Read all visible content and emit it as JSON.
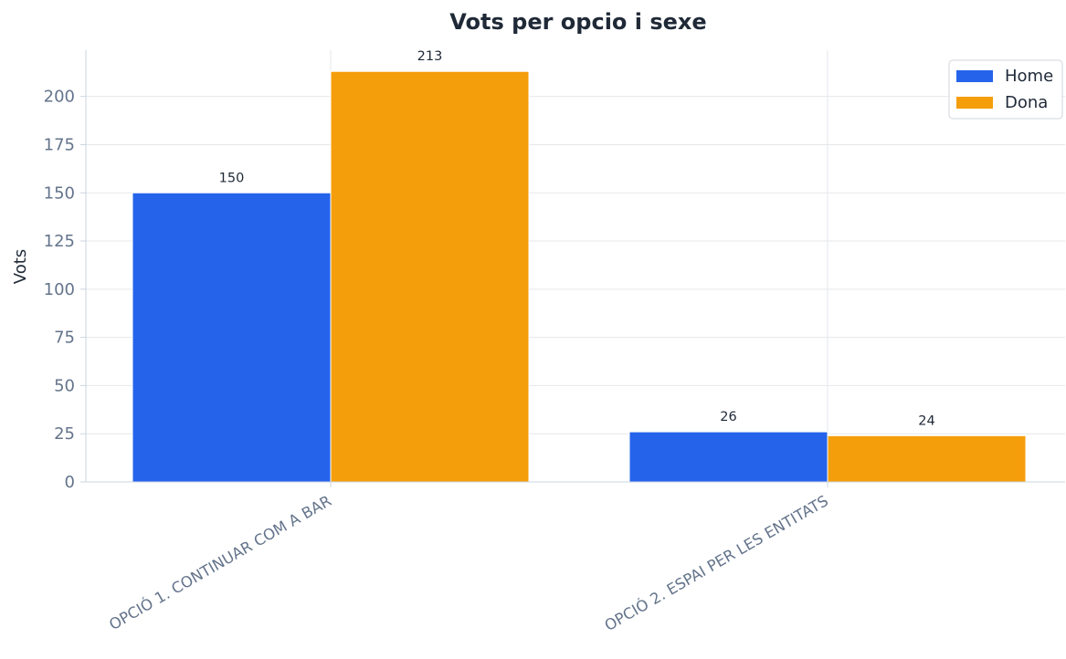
{
  "chart_data": {
    "type": "bar",
    "title": "Vots per opcio i sexe",
    "xlabel": "",
    "ylabel": "Vots",
    "categories": [
      "OPCIÓ 1. CONTINUAR COM A BAR",
      "OPCIÓ 2. ESPAI PER LES ENTITATS"
    ],
    "series": [
      {
        "name": "Home",
        "values": [
          150,
          26
        ],
        "color": "#2563eb"
      },
      {
        "name": "Dona",
        "values": [
          213,
          24
        ],
        "color": "#f59e0b"
      }
    ],
    "ylim": [
      0,
      224
    ],
    "yticks": [
      0,
      25,
      50,
      75,
      100,
      125,
      150,
      175,
      200
    ],
    "grid": true,
    "legend_position": "top-right",
    "data_labels": true
  }
}
